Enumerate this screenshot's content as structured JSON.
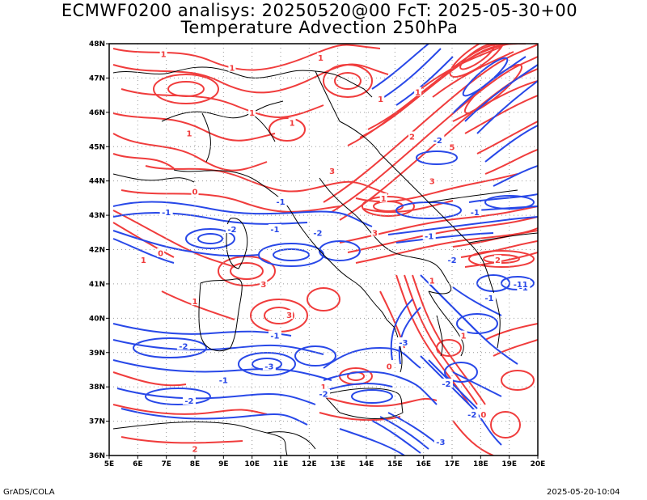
{
  "header": {
    "title": "ECMWF0200 analisys: 20250520@00 FcT: 2025-05-30+00",
    "subtitle": "Temperature Advection 250hPa"
  },
  "map": {
    "lon_range": [
      5,
      20
    ],
    "lat_range": [
      36,
      48
    ],
    "lon_ticks": [
      "5E",
      "6E",
      "7E",
      "8E",
      "9E",
      "10E",
      "11E",
      "12E",
      "13E",
      "14E",
      "15E",
      "16E",
      "17E",
      "18E",
      "19E",
      "20E"
    ],
    "lat_ticks": [
      "36N",
      "37N",
      "38N",
      "39N",
      "40N",
      "41N",
      "42N",
      "43N",
      "44N",
      "45N",
      "46N",
      "47N",
      "48N"
    ],
    "colors": {
      "positive": "#f03c3c",
      "negative": "#2848e8",
      "coast": "#000000",
      "grid": "#9a9a9a"
    },
    "contour_labels": [
      {
        "text": "1",
        "lon": 6.9,
        "lat": 47.7,
        "sign": "positive"
      },
      {
        "text": "1",
        "lon": 9.3,
        "lat": 47.3,
        "sign": "positive"
      },
      {
        "text": "1",
        "lon": 12.4,
        "lat": 47.6,
        "sign": "positive"
      },
      {
        "text": "1",
        "lon": 10.0,
        "lat": 46.0,
        "sign": "positive"
      },
      {
        "text": "1",
        "lon": 11.4,
        "lat": 45.7,
        "sign": "positive"
      },
      {
        "text": "1",
        "lon": 14.5,
        "lat": 46.4,
        "sign": "positive"
      },
      {
        "text": "1",
        "lon": 7.8,
        "lat": 45.4,
        "sign": "positive"
      },
      {
        "text": "3",
        "lon": 12.8,
        "lat": 44.3,
        "sign": "positive"
      },
      {
        "text": "0",
        "lon": 8.0,
        "lat": 43.7,
        "sign": "positive"
      },
      {
        "text": "1",
        "lon": 14.6,
        "lat": 43.5,
        "sign": "positive"
      },
      {
        "text": "5",
        "lon": 17.0,
        "lat": 45.0,
        "sign": "positive"
      },
      {
        "text": "3",
        "lon": 16.3,
        "lat": 44.0,
        "sign": "positive"
      },
      {
        "text": "1",
        "lon": 15.8,
        "lat": 46.6,
        "sign": "positive"
      },
      {
        "text": "2",
        "lon": 15.6,
        "lat": 45.3,
        "sign": "positive"
      },
      {
        "text": "3",
        "lon": 14.3,
        "lat": 42.5,
        "sign": "positive"
      },
      {
        "text": "0",
        "lon": 6.8,
        "lat": 41.9,
        "sign": "positive"
      },
      {
        "text": "1",
        "lon": 6.2,
        "lat": 41.7,
        "sign": "positive"
      },
      {
        "text": "3",
        "lon": 10.4,
        "lat": 41.0,
        "sign": "positive"
      },
      {
        "text": "3",
        "lon": 11.3,
        "lat": 40.1,
        "sign": "positive"
      },
      {
        "text": "1",
        "lon": 8.0,
        "lat": 40.5,
        "sign": "positive"
      },
      {
        "text": "0",
        "lon": 14.8,
        "lat": 38.6,
        "sign": "positive"
      },
      {
        "text": "1",
        "lon": 12.5,
        "lat": 38.0,
        "sign": "positive"
      },
      {
        "text": "1",
        "lon": 16.3,
        "lat": 41.1,
        "sign": "positive"
      },
      {
        "text": "2",
        "lon": 18.6,
        "lat": 41.7,
        "sign": "positive"
      },
      {
        "text": "1",
        "lon": 17.4,
        "lat": 39.5,
        "sign": "positive"
      },
      {
        "text": "0",
        "lon": 18.1,
        "lat": 37.2,
        "sign": "positive"
      },
      {
        "text": "2",
        "lon": 8.0,
        "lat": 36.2,
        "sign": "positive"
      },
      {
        "text": "-1",
        "lon": 7.0,
        "lat": 43.1,
        "sign": "negative"
      },
      {
        "text": "-2",
        "lon": 9.3,
        "lat": 42.6,
        "sign": "negative"
      },
      {
        "text": "-1",
        "lon": 11.0,
        "lat": 43.4,
        "sign": "negative"
      },
      {
        "text": "-2",
        "lon": 12.3,
        "lat": 42.5,
        "sign": "negative"
      },
      {
        "text": "-1",
        "lon": 16.2,
        "lat": 42.4,
        "sign": "negative"
      },
      {
        "text": "-1",
        "lon": 17.8,
        "lat": 43.1,
        "sign": "negative"
      },
      {
        "text": "-2",
        "lon": 16.5,
        "lat": 45.2,
        "sign": "negative"
      },
      {
        "text": "-1",
        "lon": 18.3,
        "lat": 40.6,
        "sign": "negative"
      },
      {
        "text": "-1",
        "lon": 19.5,
        "lat": 40.9,
        "sign": "negative"
      },
      {
        "text": "-11",
        "lon": 19.4,
        "lat": 41.0,
        "sign": "negative"
      },
      {
        "text": "-2",
        "lon": 7.6,
        "lat": 39.2,
        "sign": "negative"
      },
      {
        "text": "-1",
        "lon": 10.8,
        "lat": 39.5,
        "sign": "negative"
      },
      {
        "text": "-1",
        "lon": 9.0,
        "lat": 38.2,
        "sign": "negative"
      },
      {
        "text": "-2",
        "lon": 7.8,
        "lat": 37.6,
        "sign": "negative"
      },
      {
        "text": "-3",
        "lon": 10.6,
        "lat": 38.6,
        "sign": "negative"
      },
      {
        "text": "-2",
        "lon": 12.5,
        "lat": 37.8,
        "sign": "negative"
      },
      {
        "text": "-3",
        "lon": 15.3,
        "lat": 39.3,
        "sign": "negative"
      },
      {
        "text": "-2",
        "lon": 16.8,
        "lat": 38.1,
        "sign": "negative"
      },
      {
        "text": "-2",
        "lon": 17.7,
        "lat": 37.2,
        "sign": "negative"
      },
      {
        "text": "-3",
        "lon": 16.6,
        "lat": 36.4,
        "sign": "negative"
      },
      {
        "text": "-2",
        "lon": 17.0,
        "lat": 41.7,
        "sign": "negative"
      },
      {
        "text": "-1",
        "lon": 10.8,
        "lat": 42.6,
        "sign": "negative"
      }
    ]
  },
  "footer": {
    "left": "GrADS/COLA",
    "right": "2025-05-20-10:04"
  }
}
